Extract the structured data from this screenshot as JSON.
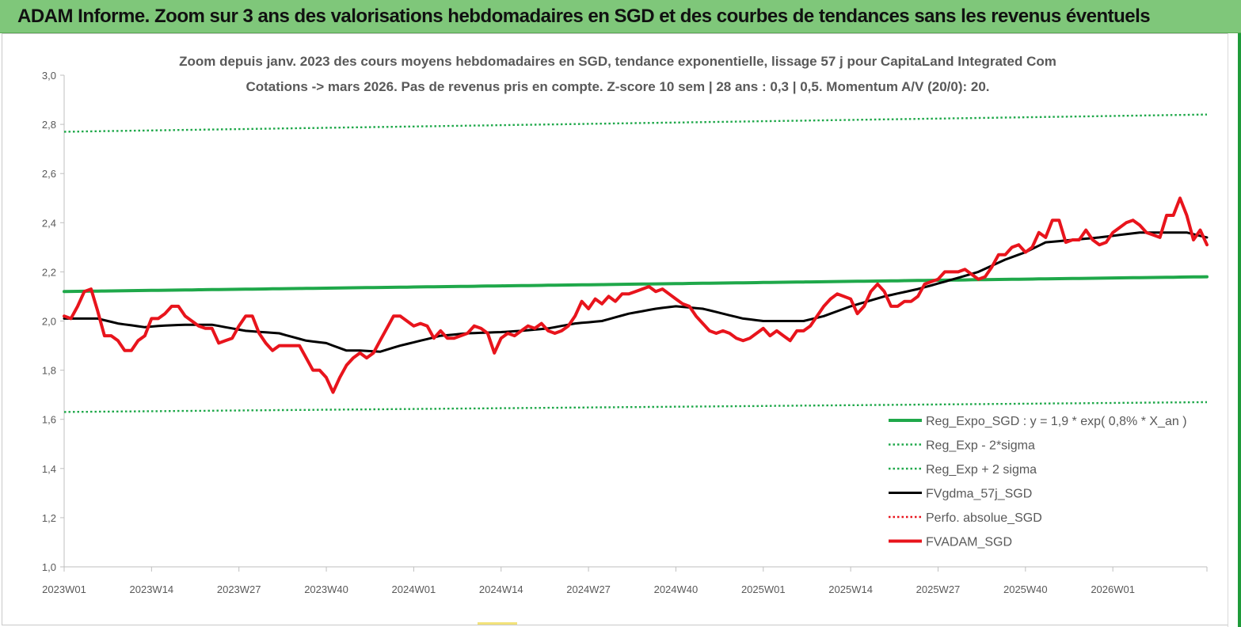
{
  "banner": {
    "title": "ADAM Informe. Zoom sur 3 ans des valorisations hebdomadaires en SGD et des courbes de tendances sans les revenus éventuels"
  },
  "colors": {
    "banner_bg": "#7fc77a",
    "reg_expo": "#1fa84a",
    "fvgdma": "#000000",
    "fvadam": "#e8141c",
    "perfo": "#e8141c"
  },
  "chart_data": {
    "type": "line",
    "title_line1": "Zoom depuis janv. 2023 des cours moyens hebdomadaires en SGD, tendance exponentielle, lissage 57 j pour CapitaLand Integrated Com",
    "title_line2": "Cotations -> mars 2026. Pas de revenus pris en compte. Z-score 10 sem | 28 ans : 0,3 | 0,5. Momentum A/V (20/0): 20.",
    "xlabel": "",
    "ylabel": "",
    "ylim": [
      1.0,
      3.0
    ],
    "y_ticks": [
      "1,0",
      "1,2",
      "1,4",
      "1,6",
      "1,8",
      "2,0",
      "2,2",
      "2,4",
      "2,6",
      "2,8",
      "3,0"
    ],
    "x_ticks": [
      "2023W01",
      "2023W14",
      "2023W27",
      "2023W40",
      "2024W01",
      "2024W14",
      "2024W27",
      "2024W40",
      "2025W01",
      "2025W14",
      "2025W27",
      "2025W40",
      "2026W01"
    ],
    "x_tick_index": [
      0,
      13,
      26,
      39,
      52,
      65,
      78,
      91,
      104,
      117,
      130,
      143,
      156
    ],
    "x_count": 171,
    "grid": false,
    "legend_position": "bottom-right",
    "series": [
      {
        "name": "Reg_Expo_SGD : y = 1,9 * exp( 0,8% *  X_an )",
        "style": "thick-solid",
        "color": "#1fa84a",
        "anchors_index": [
          0,
          170
        ],
        "anchors_value": [
          2.12,
          2.18
        ]
      },
      {
        "name": "Reg_Exp - 2*sigma",
        "style": "dotted",
        "color": "#1fa84a",
        "anchors_index": [
          0,
          170
        ],
        "anchors_value": [
          1.63,
          1.67
        ]
      },
      {
        "name": "Reg_Exp + 2 sigma",
        "style": "dotted",
        "color": "#1fa84a",
        "anchors_index": [
          0,
          170
        ],
        "anchors_value": [
          2.77,
          2.84
        ]
      },
      {
        "name": "FVgdma_57j_SGD",
        "style": "solid",
        "color": "#000000",
        "anchors_index": [
          0,
          5,
          8,
          12,
          14,
          18,
          22,
          27,
          32,
          36,
          39,
          42,
          44,
          47,
          50,
          53,
          56,
          60,
          65,
          68,
          72,
          76,
          80,
          84,
          88,
          91,
          95,
          98,
          101,
          104,
          107,
          110,
          113,
          117,
          122,
          127,
          131,
          136,
          140,
          143,
          146,
          150,
          154,
          157,
          160,
          164,
          167,
          170
        ],
        "anchors_value": [
          2.01,
          2.01,
          1.99,
          1.975,
          1.98,
          1.985,
          1.985,
          1.96,
          1.95,
          1.92,
          1.91,
          1.88,
          1.88,
          1.875,
          1.9,
          1.92,
          1.94,
          1.95,
          1.955,
          1.96,
          1.97,
          1.99,
          2.0,
          2.03,
          2.05,
          2.06,
          2.05,
          2.03,
          2.01,
          2.0,
          2.0,
          2.0,
          2.02,
          2.06,
          2.1,
          2.13,
          2.16,
          2.2,
          2.25,
          2.28,
          2.32,
          2.33,
          2.34,
          2.35,
          2.36,
          2.36,
          2.36,
          2.34
        ]
      },
      {
        "name": "Perfo. absolue_SGD",
        "style": "dotted",
        "color": "#e8141c",
        "anchors_index": [],
        "anchors_value": []
      },
      {
        "name": "FVADAM_SGD",
        "style": "thick-solid",
        "color": "#e8141c",
        "anchors_index": [
          0,
          1,
          2,
          3,
          4,
          5,
          6,
          7,
          8,
          9,
          10,
          11,
          12,
          13,
          14,
          15,
          16,
          17,
          18,
          19,
          20,
          21,
          22,
          23,
          24,
          25,
          26,
          27,
          28,
          29,
          30,
          31,
          32,
          33,
          34,
          35,
          36,
          37,
          38,
          39,
          40,
          41,
          42,
          43,
          44,
          45,
          46,
          47,
          48,
          49,
          50,
          51,
          52,
          53,
          54,
          55,
          56,
          57,
          58,
          59,
          60,
          61,
          62,
          63,
          64,
          65,
          66,
          67,
          68,
          69,
          70,
          71,
          72,
          73,
          74,
          75,
          76,
          77,
          78,
          79,
          80,
          81,
          82,
          83,
          84,
          85,
          86,
          87,
          88,
          89,
          90,
          91,
          92,
          93,
          94,
          95,
          96,
          97,
          98,
          99,
          100,
          101,
          102,
          103,
          104,
          105,
          106,
          107,
          108,
          109,
          110,
          111,
          112,
          113,
          114,
          115,
          116,
          117,
          118,
          119,
          120,
          121,
          122,
          123,
          124,
          125,
          126,
          127,
          128,
          129,
          130,
          131,
          132,
          133,
          134,
          135,
          136,
          137,
          138,
          139,
          140,
          141,
          142,
          143,
          144,
          145,
          146,
          147,
          148,
          149,
          150,
          151,
          152,
          153,
          154,
          155,
          156,
          157,
          158,
          159,
          160,
          161,
          162,
          163,
          164,
          165,
          166,
          167,
          168,
          169,
          170
        ],
        "anchors_value": [
          2.02,
          2.01,
          2.06,
          2.12,
          2.13,
          2.04,
          1.94,
          1.94,
          1.92,
          1.88,
          1.88,
          1.92,
          1.94,
          2.01,
          2.01,
          2.03,
          2.06,
          2.06,
          2.02,
          2.0,
          1.98,
          1.97,
          1.97,
          1.91,
          1.92,
          1.93,
          1.98,
          2.02,
          2.02,
          1.95,
          1.91,
          1.88,
          1.9,
          1.9,
          1.9,
          1.9,
          1.85,
          1.8,
          1.8,
          1.77,
          1.71,
          1.77,
          1.82,
          1.85,
          1.87,
          1.85,
          1.87,
          1.92,
          1.97,
          2.02,
          2.02,
          2.0,
          1.98,
          1.99,
          1.98,
          1.93,
          1.96,
          1.93,
          1.93,
          1.94,
          1.95,
          1.98,
          1.97,
          1.95,
          1.87,
          1.93,
          1.95,
          1.94,
          1.96,
          1.98,
          1.97,
          1.99,
          1.96,
          1.95,
          1.96,
          1.98,
          2.02,
          2.08,
          2.05,
          2.09,
          2.07,
          2.1,
          2.08,
          2.11,
          2.11,
          2.12,
          2.13,
          2.14,
          2.12,
          2.13,
          2.11,
          2.09,
          2.07,
          2.06,
          2.02,
          1.99,
          1.96,
          1.95,
          1.96,
          1.95,
          1.93,
          1.92,
          1.93,
          1.95,
          1.97,
          1.94,
          1.96,
          1.94,
          1.92,
          1.96,
          1.96,
          1.98,
          2.02,
          2.06,
          2.09,
          2.11,
          2.1,
          2.09,
          2.03,
          2.06,
          2.12,
          2.15,
          2.12,
          2.06,
          2.06,
          2.08,
          2.08,
          2.1,
          2.15,
          2.16,
          2.17,
          2.2,
          2.2,
          2.2,
          2.21,
          2.19,
          2.17,
          2.18,
          2.22,
          2.27,
          2.27,
          2.3,
          2.31,
          2.28,
          2.3,
          2.36,
          2.34,
          2.41,
          2.41,
          2.32,
          2.33,
          2.33,
          2.37,
          2.33,
          2.31,
          2.32,
          2.36,
          2.38,
          2.4,
          2.41,
          2.39,
          2.36,
          2.35,
          2.34,
          2.43,
          2.43,
          2.5,
          2.43,
          2.33,
          2.37,
          2.31,
          2.31,
          2.31,
          2.31,
          2.31
        ]
      }
    ]
  }
}
